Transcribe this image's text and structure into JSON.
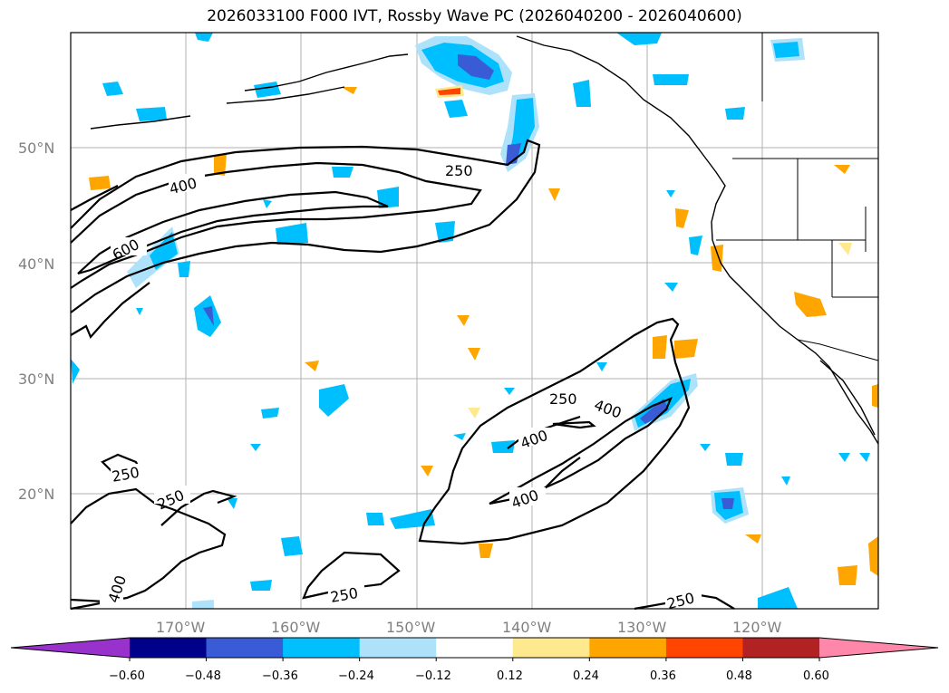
{
  "title": "2026033100 F000 IVT, Rossby Wave PC (2026040200 - 2026040600)",
  "lat_labels": [
    "50°N",
    "40°N",
    "30°N",
    "20°N"
  ],
  "lon_labels": [
    "170°W",
    "160°W",
    "150°W",
    "140°W",
    "130°W",
    "120°W"
  ],
  "colorbar": {
    "ticks": [
      "−0.60",
      "−0.48",
      "−0.36",
      "−0.24",
      "−0.12",
      "0.12",
      "0.24",
      "0.36",
      "0.48",
      "0.60"
    ],
    "colors": [
      "#9932cc",
      "#00008b",
      "#3a5bd6",
      "#00bfff",
      "#aee2fb",
      "#ffffff",
      "#ffe98f",
      "#ffa500",
      "#ff4500",
      "#b22222",
      "#ff88aa"
    ]
  },
  "contour_labels": [
    "400",
    "600",
    "250",
    "250",
    "400",
    "400",
    "400",
    "250",
    "250",
    "400",
    "250",
    "250"
  ]
}
